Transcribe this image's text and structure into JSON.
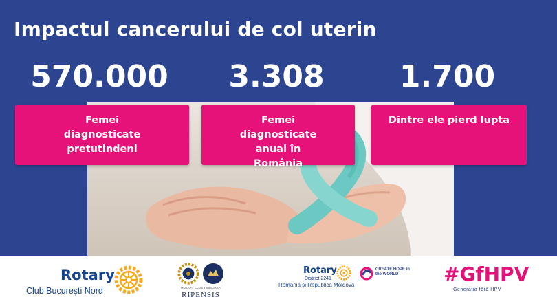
{
  "slide": {
    "title": "Impactul cancerului de col uterin",
    "background_color": "#2d4591",
    "card_color": "#e6127a"
  },
  "stats": [
    {
      "value": "570.000",
      "label": "Femei diagnosticate pretutindeni"
    },
    {
      "value": "3.308",
      "label": "Femei diagnosticate anual în România"
    },
    {
      "value": "1.700",
      "label": "Dintre ele pierd lupta"
    }
  ],
  "footer": {
    "logo1": {
      "word": "Rotary",
      "sub": "Club București Nord"
    },
    "logo2": {
      "brand": "RIPENSIS",
      "small_text": "ROTARY CLUB TIMIȘOARA"
    },
    "logo3": {
      "word": "Rotary",
      "district": "District 2241",
      "region": "România și Republica Moldova",
      "slogan": "CREATE HOPE in the WORLD"
    },
    "logo4": {
      "hashtag": "#GfHPV",
      "tagline": "Generația fără HPV"
    }
  }
}
